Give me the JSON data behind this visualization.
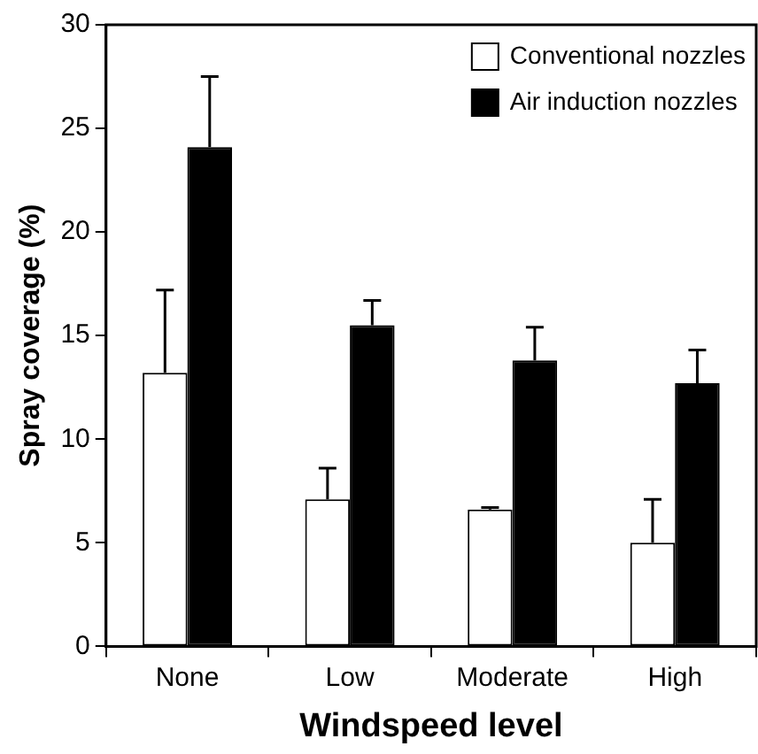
{
  "chart_data": {
    "type": "bar",
    "xlabel": "Windspeed level",
    "ylabel": "Spray coverage (%)",
    "categories": [
      "None",
      "Low",
      "Moderate",
      "High"
    ],
    "series": [
      {
        "name": "Conventional nozzles",
        "color": "#ffffff",
        "values": [
          13.2,
          7.1,
          6.6,
          5.0
        ],
        "errors": [
          [
            13.2,
            17.2
          ],
          [
            7.1,
            8.6
          ],
          [
            6.6,
            6.7
          ],
          [
            5.0,
            7.1
          ]
        ]
      },
      {
        "name": "Air induction nozzles",
        "color": "#000000",
        "values": [
          24.1,
          15.5,
          13.8,
          12.7
        ],
        "errors": [
          [
            24.1,
            27.5
          ],
          [
            15.5,
            16.7
          ],
          [
            13.8,
            15.4
          ],
          [
            12.7,
            14.3
          ]
        ]
      }
    ],
    "ylim": [
      0,
      30
    ],
    "yticks": [
      0,
      5,
      10,
      15,
      20,
      25,
      30
    ],
    "grid": false,
    "legend": "top right"
  }
}
